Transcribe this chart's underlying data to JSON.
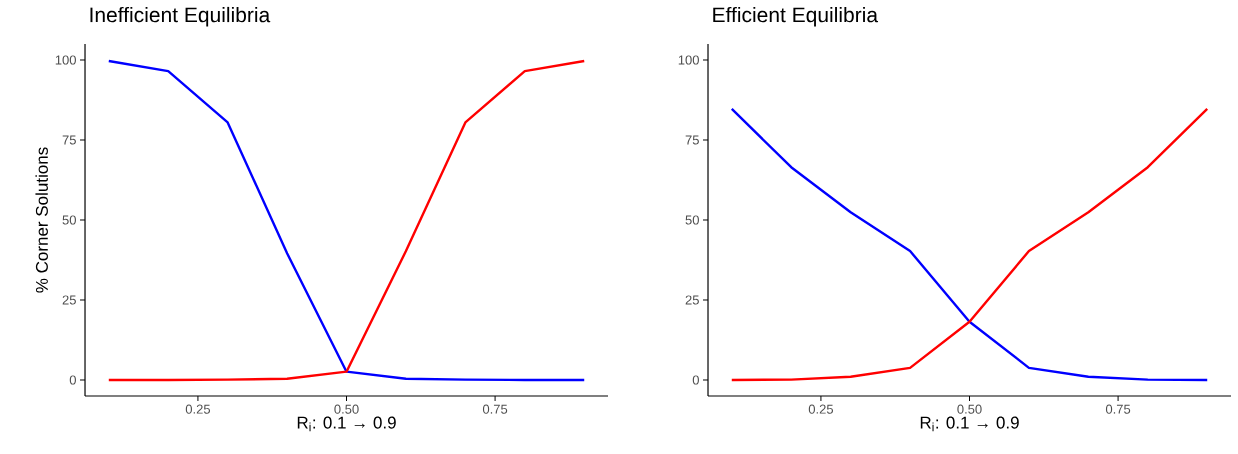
{
  "chart_data": [
    {
      "type": "line",
      "title": "Inefficient Equilibria",
      "xlabel": "R$_{i}$:  0.1 → 0.9",
      "ylabel": "% Corner Solutions",
      "x": [
        0.1,
        0.2,
        0.3,
        0.4,
        0.5,
        0.6,
        0.7,
        0.8,
        0.9
      ],
      "series": [
        {
          "color": "#0000ff",
          "values": [
            99.7,
            96.5,
            80.5,
            39.6,
            2.6,
            0.4,
            0.1,
            0,
            0
          ]
        },
        {
          "color": "#ff0000",
          "values": [
            0,
            0,
            0.1,
            0.4,
            2.6,
            40.3,
            80.5,
            96.5,
            99.7
          ]
        }
      ],
      "xlim": [
        0.06,
        0.94
      ],
      "ylim": [
        -5,
        105
      ],
      "xticks": [
        {
          "value": 0.25,
          "label": "0.25"
        },
        {
          "value": 0.5,
          "label": "0.50"
        },
        {
          "value": 0.75,
          "label": "0.75"
        }
      ],
      "yticks": [
        0,
        25,
        50,
        75,
        100
      ]
    },
    {
      "type": "line",
      "title": "Efficient Equilibria",
      "xlabel": "R$_{i}$:  0.1 → 0.9",
      "x": [
        0.1,
        0.2,
        0.3,
        0.4,
        0.5,
        0.6,
        0.7,
        0.8,
        0.9
      ],
      "series": [
        {
          "color": "#0000ff",
          "values": [
            84.7,
            66.5,
            52.4,
            40.3,
            18.2,
            3.8,
            1,
            0.1,
            0
          ]
        },
        {
          "color": "#ff0000",
          "values": [
            0,
            0.1,
            1,
            3.8,
            18.2,
            40.3,
            52.4,
            66.5,
            84.7
          ]
        }
      ],
      "xlim": [
        0.06,
        0.94
      ],
      "ylim": [
        -5,
        105
      ],
      "xticks": [
        {
          "value": 0.25,
          "label": "0.25"
        },
        {
          "value": 0.5,
          "label": "0.50"
        },
        {
          "value": 0.75,
          "label": "0.75"
        }
      ],
      "yticks": [
        0,
        25,
        50,
        75,
        100
      ]
    }
  ]
}
